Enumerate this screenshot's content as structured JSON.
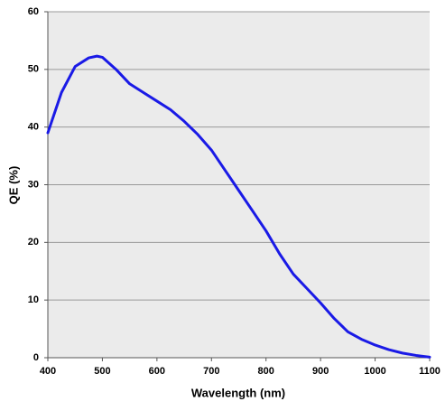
{
  "chart_data": {
    "type": "line",
    "x_label": "Wavelength (nm)",
    "y_label": "QE (%)",
    "x": [
      400,
      425,
      450,
      475,
      490,
      500,
      525,
      550,
      575,
      600,
      625,
      650,
      675,
      700,
      725,
      750,
      775,
      800,
      825,
      850,
      875,
      900,
      925,
      950,
      975,
      1000,
      1025,
      1050,
      1075,
      1100
    ],
    "series": [
      {
        "color": "#1a1ae6",
        "values": [
          39,
          46,
          50.5,
          52,
          52.3,
          52.1,
          50,
          47.5,
          46,
          44.5,
          43,
          41,
          38.7,
          36,
          32.5,
          29,
          25.5,
          22,
          18,
          14.5,
          12,
          9.5,
          6.8,
          4.5,
          3.2,
          2.2,
          1.4,
          0.8,
          0.4,
          0.1
        ]
      }
    ],
    "xlim": [
      400,
      1100
    ],
    "xticks": [
      400,
      500,
      600,
      700,
      800,
      900,
      1000,
      1100
    ],
    "ylim": [
      0,
      60
    ],
    "yticks": [
      0,
      10,
      20,
      30,
      40,
      50,
      60
    ],
    "grid": true
  }
}
